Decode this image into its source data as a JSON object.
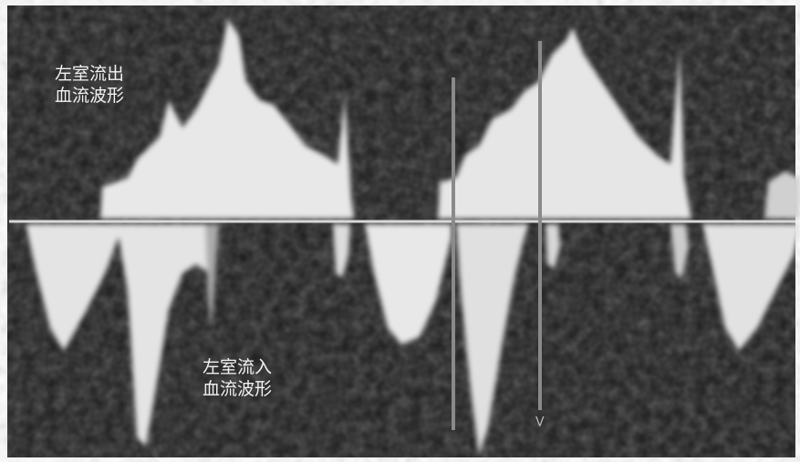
{
  "annotations": [
    {
      "lines": [
        "左室流出",
        "血流波形"
      ]
    },
    {
      "lines": [
        "左室流入",
        "血流波形"
      ]
    }
  ],
  "markers": [
    "V"
  ]
}
